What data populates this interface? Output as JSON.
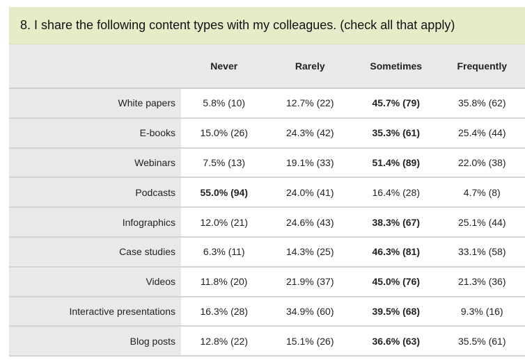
{
  "question": "8. I share the following content types with my colleagues. (check all that apply)",
  "columns": [
    "Never",
    "Rarely",
    "Sometimes",
    "Frequently"
  ],
  "rows": [
    {
      "label": "White papers",
      "cells": [
        "5.8% (10)",
        "12.7% (22)",
        "45.7% (79)",
        "35.8% (62)"
      ],
      "max_index": 2
    },
    {
      "label": "E-books",
      "cells": [
        "15.0% (26)",
        "24.3% (42)",
        "35.3% (61)",
        "25.4% (44)"
      ],
      "max_index": 2
    },
    {
      "label": "Webinars",
      "cells": [
        "7.5% (13)",
        "19.1% (33)",
        "51.4% (89)",
        "22.0% (38)"
      ],
      "max_index": 2
    },
    {
      "label": "Podcasts",
      "cells": [
        "55.0% (94)",
        "24.0% (41)",
        "16.4% (28)",
        "4.7% (8)"
      ],
      "max_index": 0
    },
    {
      "label": "Infographics",
      "cells": [
        "12.0% (21)",
        "24.6% (43)",
        "38.3% (67)",
        "25.1% (44)"
      ],
      "max_index": 2
    },
    {
      "label": "Case studies",
      "cells": [
        "6.3% (11)",
        "14.3% (25)",
        "46.3% (81)",
        "33.1% (58)"
      ],
      "max_index": 2
    },
    {
      "label": "Videos",
      "cells": [
        "11.8% (20)",
        "21.9% (37)",
        "45.0% (76)",
        "21.3% (36)"
      ],
      "max_index": 2
    },
    {
      "label": "Interactive presentations",
      "cells": [
        "16.3% (28)",
        "34.9% (60)",
        "39.5% (68)",
        "9.3% (16)"
      ],
      "max_index": 2
    },
    {
      "label": "Blog posts",
      "cells": [
        "12.8% (22)",
        "15.1% (26)",
        "36.6% (63)",
        "35.5% (61)"
      ],
      "max_index": 2
    }
  ]
}
